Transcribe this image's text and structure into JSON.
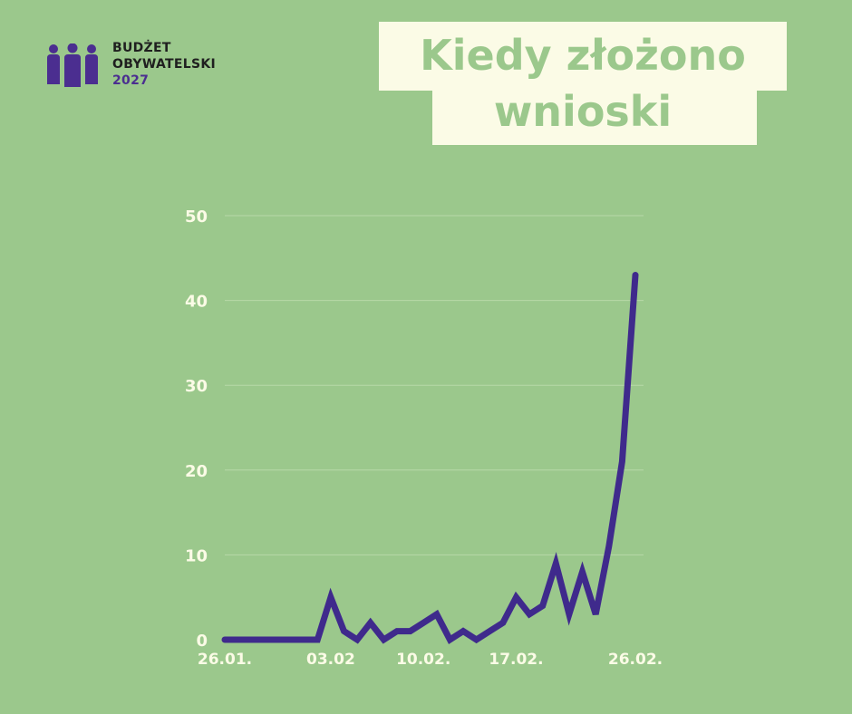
{
  "logo": {
    "line1": "BUDŻET",
    "line2": "OBYWATELSKI",
    "year": "2027",
    "icon": "people-group-icon",
    "icon_color": "#4b2e90"
  },
  "title": {
    "line1": "Kiedy złożono",
    "line2": "wnioski"
  },
  "colors": {
    "background": "#9bc88c",
    "title_box": "#fbfbe6",
    "line": "#3f2a8c",
    "tick_text": "#fbfbe6"
  },
  "chart_data": {
    "type": "line",
    "title": "Kiedy złożono wnioski",
    "xlabel": "",
    "ylabel": "",
    "x_start": "26.01.",
    "x_end": "26.02.",
    "xticks": [
      {
        "day": 0,
        "label": "26.01."
      },
      {
        "day": 8,
        "label": "03.02"
      },
      {
        "day": 15,
        "label": "10.02."
      },
      {
        "day": 22,
        "label": "17.02."
      },
      {
        "day": 31,
        "label": "26.02."
      }
    ],
    "yticks": [
      0,
      10,
      20,
      30,
      40,
      50
    ],
    "ylim": [
      0,
      50
    ],
    "grid": true,
    "legend": "none",
    "series": [
      {
        "values": [
          0,
          0,
          0,
          0,
          0,
          0,
          0,
          0,
          5,
          1,
          0,
          2,
          0,
          1,
          1,
          2,
          3,
          0,
          1,
          0,
          1,
          2,
          5,
          3,
          4,
          9,
          3,
          8,
          3,
          11,
          21,
          43
        ]
      }
    ]
  }
}
